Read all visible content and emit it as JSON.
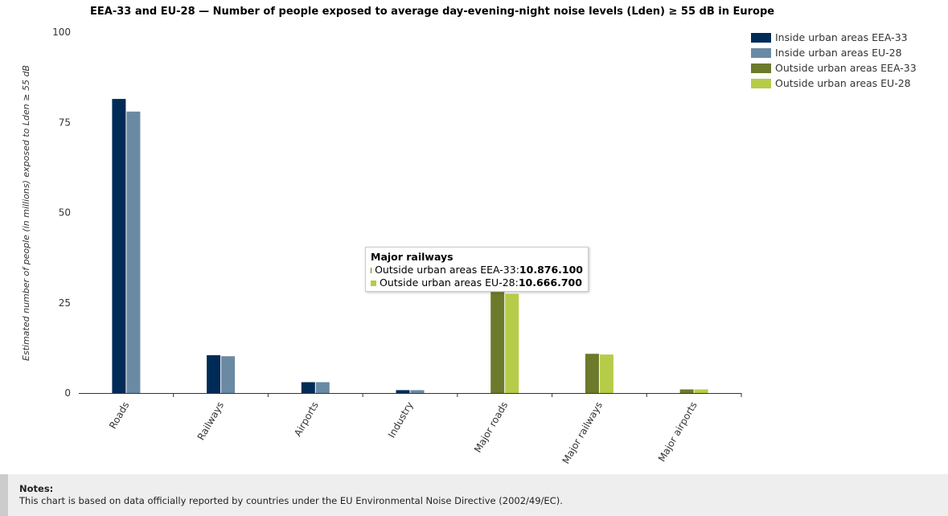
{
  "chart_data": {
    "type": "bar",
    "title": "EEA-33 and EU-28 — Number of people exposed to average day-evening-night noise levels (Lden) ≥ 55 dB in Europe",
    "ylabel": "Estimated number of people (in millions) exposed to Lden ≥ 55 dB",
    "xlabel": "",
    "ylim": [
      0,
      100
    ],
    "yticks": [
      0,
      25,
      50,
      75,
      100
    ],
    "categories": [
      "Roads",
      "Railways",
      "Airports",
      "Industry",
      "Major roads",
      "Major railways",
      "Major airports"
    ],
    "series": [
      {
        "name": "Inside urban areas EEA-33",
        "color": "#002b57",
        "values": [
          81.5,
          10.5,
          3.0,
          0.8,
          0,
          0,
          0
        ]
      },
      {
        "name": "Inside urban areas EU-28",
        "color": "#6a8aa4",
        "values": [
          78.0,
          10.2,
          3.0,
          0.8,
          0,
          0,
          0
        ]
      },
      {
        "name": "Outside urban areas EEA-33",
        "color": "#6b7a2b",
        "values": [
          0,
          0,
          0,
          0,
          28.0,
          10.876,
          1.0
        ]
      },
      {
        "name": "Outside urban areas EU-28",
        "color": "#b6cc48",
        "values": [
          0,
          0,
          0,
          0,
          27.5,
          10.667,
          1.0
        ]
      }
    ],
    "grid": false,
    "legend_position": "top-right"
  },
  "tooltip": {
    "title": "Major railways",
    "rows": [
      {
        "label": "Outside urban areas EEA-33: ",
        "value": "10.876.100",
        "color": "#6b7a2b"
      },
      {
        "label": "Outside urban areas EU-28: ",
        "value": "10.666.700",
        "color": "#b6cc48"
      }
    ]
  },
  "notes": {
    "title": "Notes:",
    "text": "This chart is based on data officially reported by countries under the EU Environmental Noise Directive (2002/49/EC)."
  }
}
